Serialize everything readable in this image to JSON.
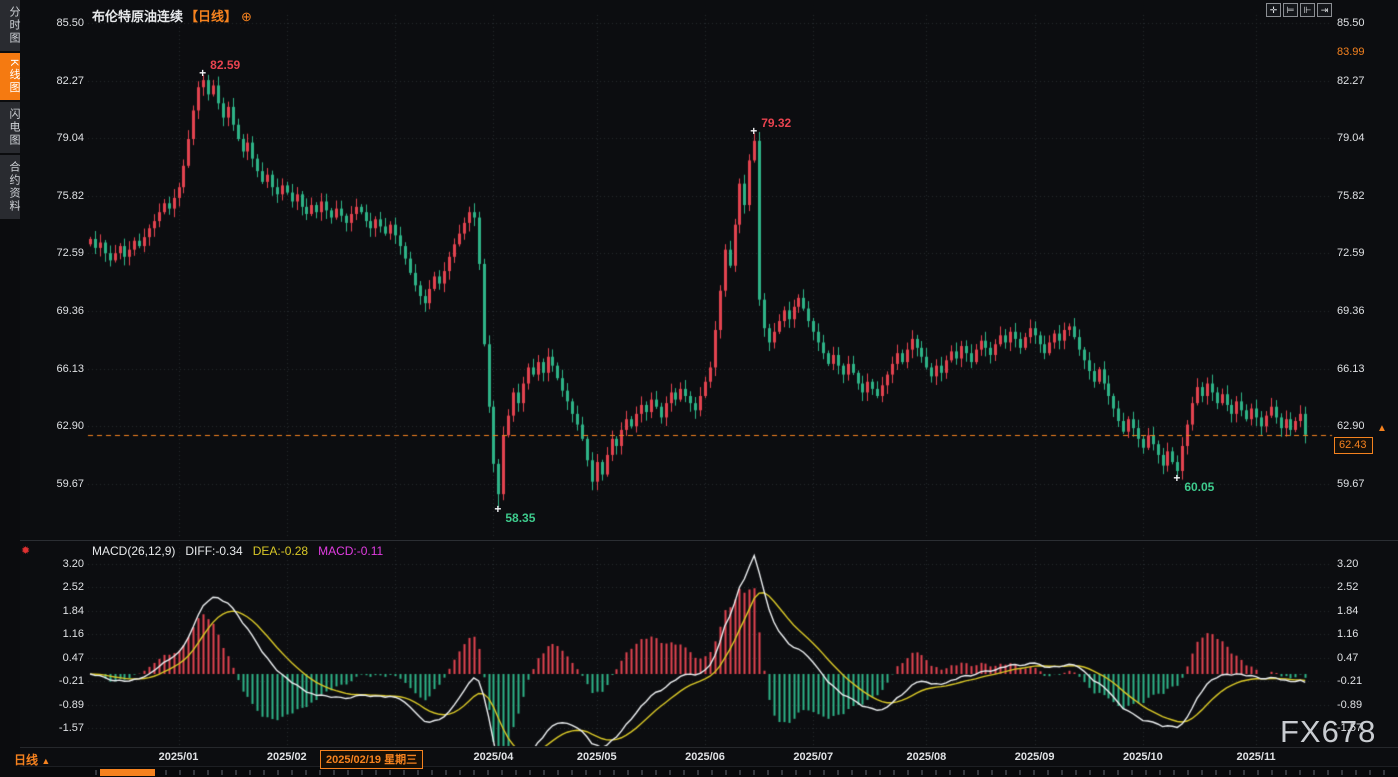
{
  "window": {
    "instrument": "布伦特原油连续",
    "period": "【日线】",
    "plus_icon": "⊕"
  },
  "sidebar": {
    "items": [
      {
        "label": "分时图",
        "active": false
      },
      {
        "label": "K线图",
        "active": true
      },
      {
        "label": "闪电图",
        "active": false
      },
      {
        "label": "合约资料",
        "active": false
      }
    ]
  },
  "toolbar": {
    "icons": [
      "crosshair-pan-icon",
      "axis-scale-left-icon",
      "axis-scale-fit-icon",
      "goto-latest-icon"
    ]
  },
  "colors": {
    "up": "#e2434f",
    "down": "#2eb387",
    "accent_orange": "#f5821f",
    "diff_line": "#eceff1",
    "dea_line": "#d9c827",
    "macd_text": "#e13ce1",
    "grid": "#26292e",
    "axis_text": "#dfe1e4"
  },
  "bottom_bar": {
    "period_label": "日线",
    "arrow": "▲"
  },
  "watermark": "FX678",
  "chart_data": {
    "type": "candlestick_with_macd",
    "title": "布伦特原油连续【日线】",
    "price_ticks": [
      {
        "label": "85.50",
        "value": 85.5
      },
      {
        "label": "82.27",
        "value": 82.27
      },
      {
        "label": "79.04",
        "value": 79.04
      },
      {
        "label": "75.82",
        "value": 75.82
      },
      {
        "label": "72.59",
        "value": 72.59
      },
      {
        "label": "69.36",
        "value": 69.36
      },
      {
        "label": "66.13",
        "value": 66.13
      },
      {
        "label": "62.90",
        "value": 62.9
      },
      {
        "label": "59.67",
        "value": 59.67
      }
    ],
    "macd_ticks": [
      {
        "label": "3.20",
        "value": 3.2
      },
      {
        "label": "2.52",
        "value": 2.52
      },
      {
        "label": "1.84",
        "value": 1.84
      },
      {
        "label": "1.16",
        "value": 1.16
      },
      {
        "label": "0.47",
        "value": 0.47
      },
      {
        "label": "-0.21",
        "value": -0.21
      },
      {
        "label": "-0.89",
        "value": -0.89
      },
      {
        "label": "-1.57",
        "value": -1.57
      }
    ],
    "macd_label": {
      "formula": "MACD(26,12,9)",
      "diff": "DIFF:-0.34",
      "dea": "DEA:-0.28",
      "macd": "MACD:-0.11"
    },
    "session_high_label": "83.99",
    "current_price": {
      "label": "62.43",
      "value": 62.43,
      "edge_arrow": "▲"
    },
    "crosshair_date": "2025/02/19 星期三",
    "month_ticks": [
      {
        "label": "2025/01",
        "index": 18
      },
      {
        "label": "2025/02",
        "index": 40
      },
      {
        "label": "2025/04",
        "index": 82
      },
      {
        "label": "2025/05",
        "index": 103
      },
      {
        "label": "2025/06",
        "index": 125
      },
      {
        "label": "2025/07",
        "index": 147
      },
      {
        "label": "2025/08",
        "index": 170
      },
      {
        "label": "2025/09",
        "index": 192
      },
      {
        "label": "2025/10",
        "index": 214
      },
      {
        "label": "2025/11",
        "index": 237
      }
    ],
    "grid_month_indices": [
      18,
      40,
      62,
      82,
      103,
      125,
      147,
      170,
      192,
      214,
      237
    ],
    "annotations": [
      {
        "label": "82.59",
        "value": 82.59,
        "index": 23,
        "type": "high"
      },
      {
        "label": "79.32",
        "value": 79.32,
        "index": 135,
        "type": "high"
      },
      {
        "label": "58.35",
        "value": 58.35,
        "index": 83,
        "type": "low"
      },
      {
        "label": "60.05",
        "value": 60.05,
        "index": 221,
        "type": "low"
      }
    ],
    "closes": [
      73.4,
      72.9,
      73.2,
      72.6,
      72.2,
      72.6,
      73.0,
      72.4,
      72.8,
      73.3,
      73.0,
      73.5,
      74.0,
      74.4,
      74.9,
      75.4,
      75.1,
      75.7,
      76.3,
      77.5,
      79.0,
      80.6,
      81.9,
      82.3,
      81.5,
      82.0,
      81.0,
      80.2,
      80.8,
      79.8,
      79.0,
      78.3,
      78.8,
      77.9,
      77.2,
      76.6,
      77.0,
      76.3,
      75.9,
      76.4,
      76.0,
      75.5,
      75.9,
      75.2,
      74.8,
      75.3,
      74.9,
      75.5,
      75.0,
      74.6,
      75.1,
      74.7,
      74.3,
      74.8,
      75.2,
      74.9,
      74.4,
      74.0,
      74.5,
      74.1,
      73.7,
      74.2,
      73.6,
      73.0,
      72.3,
      71.5,
      70.8,
      70.2,
      69.8,
      70.6,
      71.3,
      70.9,
      71.6,
      72.4,
      73.1,
      73.7,
      74.3,
      74.9,
      74.6,
      72.0,
      67.5,
      64.0,
      60.8,
      59.1,
      62.4,
      63.5,
      64.8,
      64.2,
      65.3,
      66.2,
      65.8,
      66.5,
      65.9,
      66.8,
      66.3,
      65.6,
      64.9,
      64.3,
      63.6,
      63.0,
      62.2,
      61.0,
      59.8,
      60.9,
      60.2,
      61.3,
      62.2,
      61.8,
      62.7,
      63.3,
      62.9,
      63.6,
      64.1,
      63.7,
      64.4,
      64.0,
      63.4,
      64.2,
      64.8,
      64.4,
      65.0,
      64.6,
      64.2,
      63.8,
      64.6,
      65.4,
      66.2,
      68.3,
      70.5,
      72.8,
      71.9,
      74.2,
      76.5,
      75.3,
      77.8,
      78.9,
      70.0,
      68.4,
      67.6,
      68.2,
      68.8,
      69.4,
      68.9,
      69.6,
      70.1,
      69.5,
      68.8,
      68.2,
      67.6,
      67.0,
      66.4,
      66.9,
      66.3,
      65.8,
      66.4,
      65.9,
      65.3,
      64.8,
      65.4,
      65.0,
      64.6,
      65.2,
      65.8,
      66.4,
      67.0,
      66.5,
      67.2,
      67.8,
      67.3,
      66.8,
      66.2,
      65.7,
      66.3,
      65.9,
      66.6,
      67.1,
      66.7,
      67.4,
      67.0,
      66.5,
      67.2,
      67.7,
      67.3,
      66.9,
      67.5,
      68.0,
      67.6,
      68.2,
      67.8,
      67.3,
      67.9,
      68.4,
      68.0,
      67.5,
      67.0,
      67.6,
      68.1,
      67.7,
      68.3,
      68.5,
      67.9,
      67.2,
      66.6,
      66.0,
      65.4,
      66.1,
      65.3,
      64.6,
      63.9,
      63.2,
      62.6,
      63.3,
      62.8,
      62.2,
      61.7,
      62.4,
      61.9,
      61.3,
      60.7,
      61.5,
      60.9,
      60.4,
      61.8,
      63.0,
      64.2,
      65.1,
      64.6,
      65.3,
      64.8,
      64.2,
      64.7,
      64.1,
      63.6,
      64.3,
      63.8,
      63.3,
      63.9,
      63.4,
      62.9,
      63.5,
      64.0,
      63.4,
      62.8,
      63.3,
      62.7,
      63.2,
      63.6,
      62.43
    ]
  }
}
